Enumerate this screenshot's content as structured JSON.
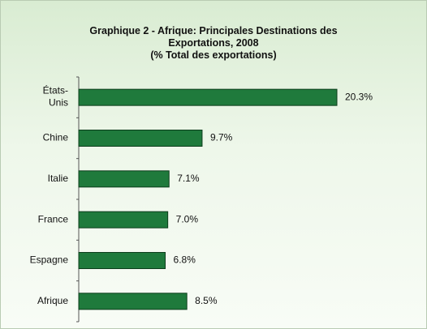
{
  "chart_data": {
    "type": "barh",
    "title": "Graphique 2 - Afrique: Principales Destinations des Exportations, 2008",
    "subtitle": "(% Total des exportations)",
    "categories": [
      "États-Unis",
      "Chine",
      "Italie",
      "France",
      "Espagne",
      "Afrique"
    ],
    "values": [
      20.3,
      9.7,
      7.1,
      7.0,
      6.8,
      8.5
    ],
    "value_labels": [
      "20.3%",
      "9.7%",
      "7.1%",
      "7.0%",
      "6.8%",
      "8.5%"
    ],
    "color": "#1f7a3c"
  }
}
